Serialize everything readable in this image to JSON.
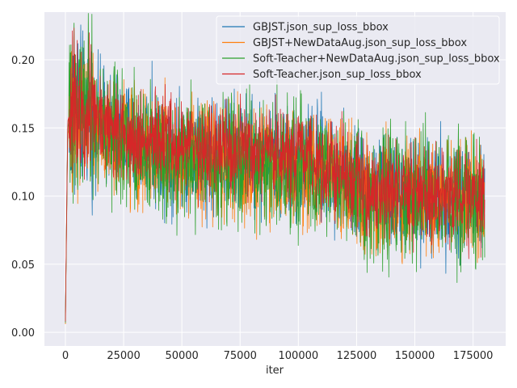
{
  "chart_data": {
    "type": "line",
    "title": "",
    "xlabel": "iter",
    "ylabel": "",
    "xlim": [
      -9000,
      189000
    ],
    "ylim": [
      -0.01,
      0.235
    ],
    "x_ticks": [
      0,
      25000,
      50000,
      75000,
      100000,
      125000,
      150000,
      175000
    ],
    "x_tick_labels": [
      "0",
      "25000",
      "50000",
      "75000",
      "100000",
      "125000",
      "150000",
      "175000"
    ],
    "y_ticks": [
      0.0,
      0.05,
      0.1,
      0.15,
      0.2
    ],
    "y_tick_labels": [
      "0.00",
      "0.05",
      "0.10",
      "0.15",
      "0.20"
    ],
    "grid": true,
    "legend_position": "top-right",
    "series": [
      {
        "name": "GBJST.json_sup_loss_bbox",
        "color": "#1f77b4",
        "x": [
          0,
          1000,
          3000,
          6000,
          10000,
          15000,
          20000,
          25000,
          30000,
          40000,
          50000,
          60000,
          70000,
          80000,
          90000,
          100000,
          110000,
          118000,
          122000,
          130000,
          140000,
          150000,
          160000,
          170000,
          180000
        ],
        "y": [
          0.008,
          0.15,
          0.165,
          0.165,
          0.16,
          0.155,
          0.148,
          0.143,
          0.14,
          0.137,
          0.134,
          0.132,
          0.13,
          0.128,
          0.126,
          0.124,
          0.122,
          0.118,
          0.108,
          0.104,
          0.102,
          0.1,
          0.099,
          0.098,
          0.097
        ]
      },
      {
        "name": "GBJST+NewDataAug.json_sup_loss_bbox",
        "color": "#ff7f0e",
        "x": [
          0,
          1000,
          3000,
          6000,
          10000,
          15000,
          20000,
          25000,
          30000,
          40000,
          50000,
          60000,
          70000,
          80000,
          90000,
          100000,
          110000,
          118000,
          122000,
          130000,
          140000,
          150000,
          160000,
          170000,
          180000
        ],
        "y": [
          0.006,
          0.145,
          0.16,
          0.16,
          0.155,
          0.15,
          0.144,
          0.139,
          0.136,
          0.133,
          0.13,
          0.128,
          0.126,
          0.124,
          0.122,
          0.12,
          0.118,
          0.114,
          0.105,
          0.101,
          0.099,
          0.098,
          0.097,
          0.096,
          0.095
        ]
      },
      {
        "name": "Soft-Teacher+NewDataAug.json_sup_loss_bbox",
        "color": "#2ca02c",
        "x": [
          0,
          1000,
          3000,
          6000,
          10000,
          15000,
          20000,
          25000,
          30000,
          40000,
          50000,
          60000,
          70000,
          80000,
          90000,
          100000,
          110000,
          118000,
          122000,
          130000,
          140000,
          150000,
          160000,
          170000,
          180000
        ],
        "y": [
          0.007,
          0.15,
          0.168,
          0.167,
          0.16,
          0.153,
          0.146,
          0.14,
          0.137,
          0.134,
          0.131,
          0.129,
          0.127,
          0.125,
          0.123,
          0.121,
          0.119,
          0.115,
          0.104,
          0.1,
          0.098,
          0.097,
          0.096,
          0.095,
          0.094
        ]
      },
      {
        "name": "Soft-Teacher.json_sup_loss_bbox",
        "color": "#d62728",
        "x": [
          0,
          1000,
          3000,
          6000,
          10000,
          15000,
          20000,
          25000,
          30000,
          40000,
          50000,
          60000,
          70000,
          80000,
          90000,
          100000,
          110000,
          118000,
          122000,
          130000,
          140000,
          150000,
          160000,
          170000,
          180000
        ],
        "y": [
          0.008,
          0.155,
          0.168,
          0.168,
          0.163,
          0.157,
          0.151,
          0.146,
          0.143,
          0.14,
          0.137,
          0.135,
          0.133,
          0.131,
          0.129,
          0.127,
          0.125,
          0.121,
          0.11,
          0.106,
          0.104,
          0.102,
          0.101,
          0.1,
          0.099
        ]
      }
    ]
  }
}
